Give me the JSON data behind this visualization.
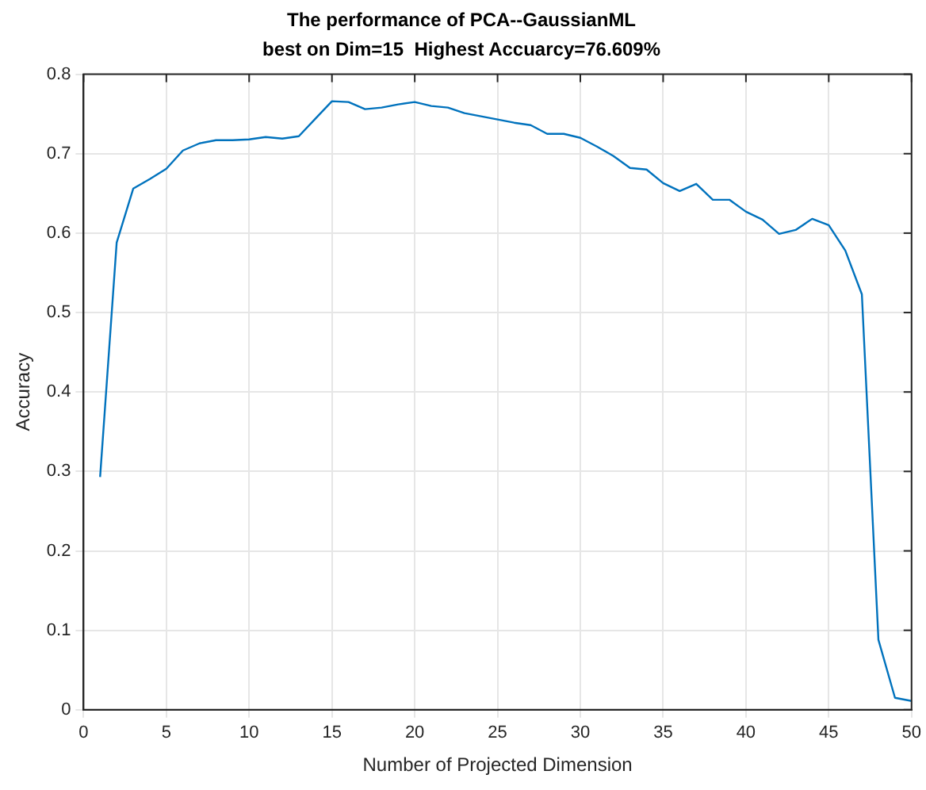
{
  "chart_data": {
    "type": "line",
    "title": "The performance of PCA--GaussianML",
    "subtitle": "best on Dim=15  Highest Accuarcy=76.609%",
    "xlabel": "Number of Projected Dimension",
    "ylabel": "Accuracy",
    "x": [
      1,
      2,
      3,
      4,
      5,
      6,
      7,
      8,
      9,
      10,
      11,
      12,
      13,
      14,
      15,
      16,
      17,
      18,
      19,
      20,
      21,
      22,
      23,
      24,
      25,
      26,
      27,
      28,
      29,
      30,
      31,
      32,
      33,
      34,
      35,
      36,
      37,
      38,
      39,
      40,
      41,
      42,
      43,
      44,
      45,
      46,
      47,
      48,
      49,
      50
    ],
    "series": [
      {
        "color": "#0072bd",
        "values": [
          0.293,
          0.588,
          0.656,
          0.668,
          0.681,
          0.704,
          0.713,
          0.717,
          0.717,
          0.718,
          0.721,
          0.719,
          0.722,
          0.744,
          0.766,
          0.765,
          0.756,
          0.758,
          0.762,
          0.765,
          0.76,
          0.758,
          0.751,
          0.747,
          0.743,
          0.739,
          0.736,
          0.725,
          0.725,
          0.72,
          0.709,
          0.697,
          0.682,
          0.68,
          0.663,
          0.653,
          0.662,
          0.642,
          0.642,
          0.627,
          0.617,
          0.599,
          0.604,
          0.618,
          0.61,
          0.578,
          0.523,
          0.088,
          0.015,
          0.011
        ]
      }
    ],
    "xlim": [
      0,
      50
    ],
    "xticks": [
      0,
      5,
      10,
      15,
      20,
      25,
      30,
      35,
      40,
      45,
      50
    ],
    "ylim": [
      0,
      0.8
    ],
    "yticks": [
      0,
      0.1,
      0.2,
      0.3,
      0.4,
      0.5,
      0.6,
      0.7,
      0.8
    ],
    "grid": true,
    "marker": "none",
    "line_style": "solid"
  }
}
